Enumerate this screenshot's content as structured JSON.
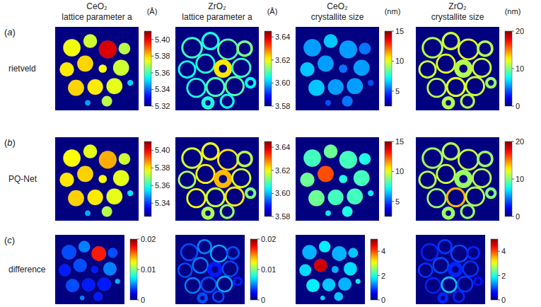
{
  "particles": [
    {
      "x": 20,
      "y": 25,
      "r": 13,
      "core": 0.8
    },
    {
      "x": 42,
      "y": 17,
      "r": 11,
      "core": 0.75
    },
    {
      "x": 63,
      "y": 27,
      "r": 13,
      "core": 0.82
    },
    {
      "x": 83,
      "y": 26,
      "r": 10,
      "core": 0.7
    },
    {
      "x": 14,
      "y": 51,
      "r": 11,
      "core": 0.78
    },
    {
      "x": 36,
      "y": 44,
      "r": 12,
      "core": 0.8
    },
    {
      "x": 57,
      "y": 50,
      "r": 11,
      "core": 0.45
    },
    {
      "x": 79,
      "y": 49,
      "r": 12,
      "core": 0.8
    },
    {
      "x": 25,
      "y": 73,
      "r": 12,
      "core": 0.8
    },
    {
      "x": 48,
      "y": 72,
      "r": 12,
      "core": 0.78
    },
    {
      "x": 71,
      "y": 71,
      "r": 12,
      "core": 0.8
    },
    {
      "x": 90,
      "y": 67,
      "r": 7,
      "core": 0.5
    },
    {
      "x": 39,
      "y": 91,
      "r": 8,
      "core": 0.4
    },
    {
      "x": 62,
      "y": 89,
      "r": 9,
      "core": 0.7
    }
  ],
  "chart_data": [
    {
      "type": "heatmap",
      "marker": "disc",
      "title": "CeO₂",
      "subtitle": "lattice parameter a",
      "unit": "(Å)",
      "panel_label": "(a)",
      "ylabel": "rietveld",
      "values": [
        5.375,
        5.372,
        5.402,
        5.37,
        5.378,
        5.38,
        5.376,
        5.372,
        5.38,
        5.378,
        5.374,
        5.35,
        5.345,
        5.37
      ],
      "colorbar_range": [
        5.32,
        5.41
      ],
      "colorbar_ticks": [
        5.32,
        5.34,
        5.36,
        5.38,
        {
          "value": 5.4,
          "label": "5.40"
        }
      ]
    },
    {
      "type": "heatmap",
      "marker": "ring",
      "title": "ZrO₂",
      "subtitle": "lattice parameter a",
      "unit": "(Å)",
      "values": [
        3.608,
        3.606,
        3.61,
        3.612,
        3.605,
        3.607,
        3.622,
        3.608,
        3.606,
        3.609,
        3.61,
        3.604,
        3.606,
        3.605
      ],
      "colorbar_range": [
        3.58,
        3.645
      ],
      "colorbar_ticks": [
        3.58,
        {
          "value": 3.6,
          "label": "3.60"
        },
        3.62,
        3.64
      ]
    },
    {
      "type": "heatmap",
      "marker": "disc",
      "title": "CeO₂",
      "subtitle": "crystallite size",
      "unit": "(nm)",
      "values": [
        6,
        6.5,
        6,
        5.5,
        6.5,
        6,
        5.5,
        6,
        6.5,
        6,
        6,
        5,
        5,
        5.5
      ],
      "colorbar_range": [
        2.5,
        15
      ],
      "colorbar_ticks": [
        5,
        10,
        15
      ]
    },
    {
      "type": "heatmap",
      "marker": "ring",
      "title": "ZrO₂",
      "subtitle": "crystallite size",
      "unit": "(nm)",
      "values": [
        11,
        11.5,
        12,
        11,
        11.5,
        12,
        11,
        11.5,
        11,
        12,
        11.5,
        10.5,
        11,
        11
      ],
      "colorbar_range": [
        0,
        20
      ],
      "colorbar_ticks": [
        0,
        10,
        20
      ]
    },
    {
      "type": "heatmap",
      "marker": "disc",
      "panel_label": "(b)",
      "ylabel": "PQ-Net",
      "values": [
        5.378,
        5.376,
        5.385,
        5.374,
        5.38,
        5.382,
        5.378,
        5.376,
        5.382,
        5.38,
        5.376,
        5.355,
        5.35,
        5.372
      ],
      "colorbar_range": [
        5.325,
        5.41
      ],
      "colorbar_ticks": [
        5.34,
        5.36,
        5.38,
        {
          "value": 5.4,
          "label": "5.40"
        }
      ]
    },
    {
      "type": "heatmap",
      "marker": "ring",
      "values": [
        3.618,
        3.62,
        3.622,
        3.616,
        3.615,
        3.621,
        3.625,
        3.618,
        3.62,
        3.617,
        3.622,
        3.612,
        3.615,
        3.614
      ],
      "colorbar_range": [
        3.58,
        3.645
      ],
      "colorbar_ticks": [
        3.58,
        {
          "value": 3.6,
          "label": "3.60"
        },
        3.62,
        3.64
      ]
    },
    {
      "type": "heatmap",
      "marker": "disc",
      "values": [
        8,
        8.5,
        8,
        7.5,
        8.5,
        12.5,
        7.5,
        8,
        8.5,
        8,
        8,
        7,
        7,
        7.5
      ],
      "colorbar_range": [
        2.5,
        15
      ],
      "colorbar_ticks": [
        5,
        10,
        15
      ]
    },
    {
      "type": "heatmap",
      "marker": "ring",
      "values": [
        10.5,
        11,
        11.5,
        10.5,
        11,
        11.5,
        10.5,
        11,
        10.5,
        14,
        11,
        10,
        10.5,
        10.5
      ],
      "colorbar_range": [
        0,
        20
      ],
      "colorbar_ticks": [
        0,
        10,
        20
      ]
    },
    {
      "type": "heatmap",
      "marker": "disc",
      "panel_label": "(c)",
      "ylabel": "difference",
      "values": [
        0.004,
        0.005,
        0.017,
        0.004,
        0.003,
        0.004,
        0.003,
        0.005,
        0.004,
        0.003,
        0.003,
        0.006,
        0.005,
        0.003
      ],
      "colorbar_range": [
        0,
        0.02
      ],
      "colorbar_ticks": [
        0,
        0.01,
        0.02
      ]
    },
    {
      "type": "heatmap",
      "marker": "ring",
      "values": [
        0.004,
        0.005,
        0.006,
        0.004,
        0.004,
        0.005,
        0.003,
        0.004,
        0.005,
        0.004,
        0.006,
        0.003,
        0.004,
        0.004
      ],
      "colorbar_range": [
        0,
        0.02
      ],
      "colorbar_ticks": [
        0,
        0.01,
        0.02
      ]
    },
    {
      "type": "heatmap",
      "marker": "disc",
      "values": [
        1.5,
        1.8,
        1.5,
        1.6,
        1.7,
        4.6,
        1.5,
        1.7,
        1.8,
        1.6,
        1.5,
        1.8,
        1.7,
        1.6
      ],
      "colorbar_range": [
        0,
        5
      ],
      "colorbar_ticks": [
        0,
        2,
        4
      ]
    },
    {
      "type": "heatmap",
      "marker": "ring",
      "values": [
        0.8,
        0.9,
        1,
        0.8,
        0.9,
        1,
        0.8,
        0.9,
        0.8,
        1.6,
        0.9,
        0.7,
        0.8,
        0.8
      ],
      "colorbar_range": [
        0,
        5
      ],
      "colorbar_ticks": [
        0,
        2,
        4
      ]
    }
  ]
}
